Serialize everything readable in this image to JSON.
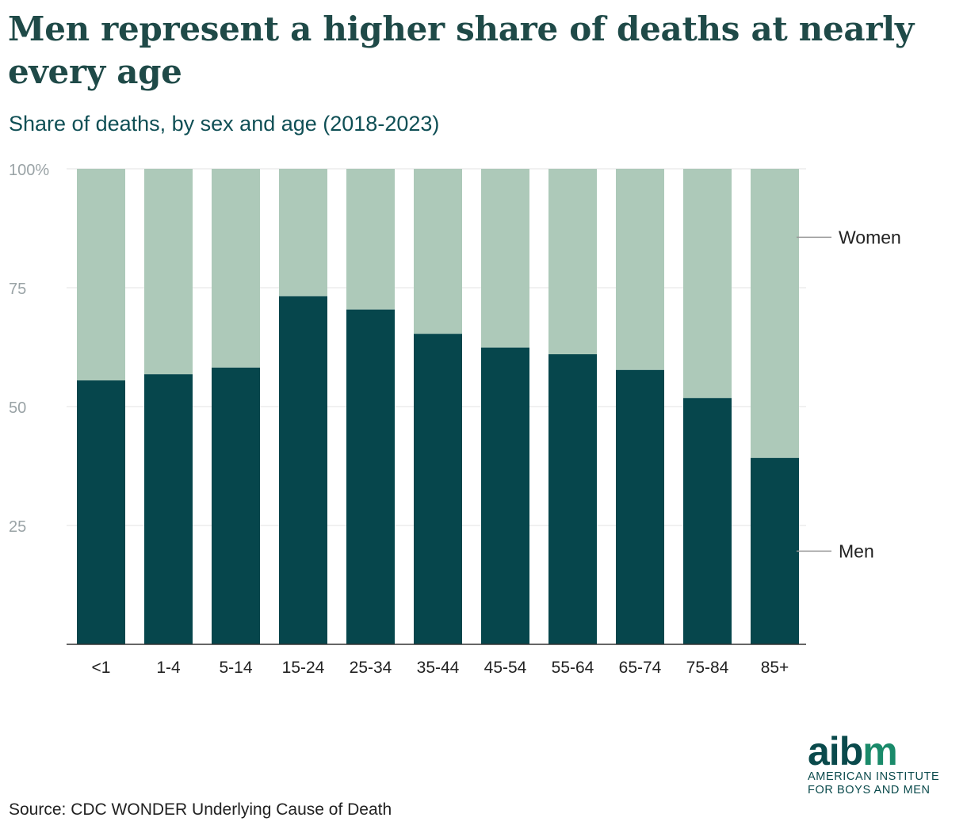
{
  "header": {
    "title": "Men represent a higher share of deaths at nearly every age",
    "subtitle": "Share of deaths, by sex and age (2018-2023)"
  },
  "footer": {
    "source": "Source: CDC WONDER Underlying Cause of Death",
    "logo_word_part1": "aib",
    "logo_word_part2": "m",
    "logo_line1": "AMERICAN INSTITUTE",
    "logo_line2": "FOR BOYS AND MEN"
  },
  "colors": {
    "men": "#06464c",
    "women": "#adc9b9",
    "grid": "#e3e3e3",
    "axis": "#333333",
    "title": "#1f4a48"
  },
  "chart_data": {
    "type": "bar",
    "stacked": true,
    "title": "Men represent a higher share of deaths at nearly every age",
    "subtitle": "Share of deaths, by sex and age (2018-2023)",
    "xlabel": "",
    "ylabel": "",
    "categories": [
      "<1",
      "1-4",
      "5-14",
      "15-24",
      "25-34",
      "35-44",
      "45-54",
      "55-64",
      "65-74",
      "75-84",
      "85+"
    ],
    "series": [
      {
        "name": "Men",
        "values": [
          55.5,
          56.8,
          58.2,
          73.2,
          70.4,
          65.3,
          62.4,
          61.0,
          57.7,
          51.8,
          39.2
        ]
      },
      {
        "name": "Women",
        "values": [
          44.5,
          43.2,
          41.8,
          26.8,
          29.6,
          34.7,
          37.6,
          39.0,
          42.3,
          48.2,
          60.8
        ]
      }
    ],
    "ylim": [
      0,
      100
    ],
    "yticks": [
      25,
      50,
      75,
      100
    ],
    "ytick_labels": [
      "25",
      "50",
      "75",
      "100%"
    ],
    "grid": true,
    "legend": "direct labels at right"
  }
}
